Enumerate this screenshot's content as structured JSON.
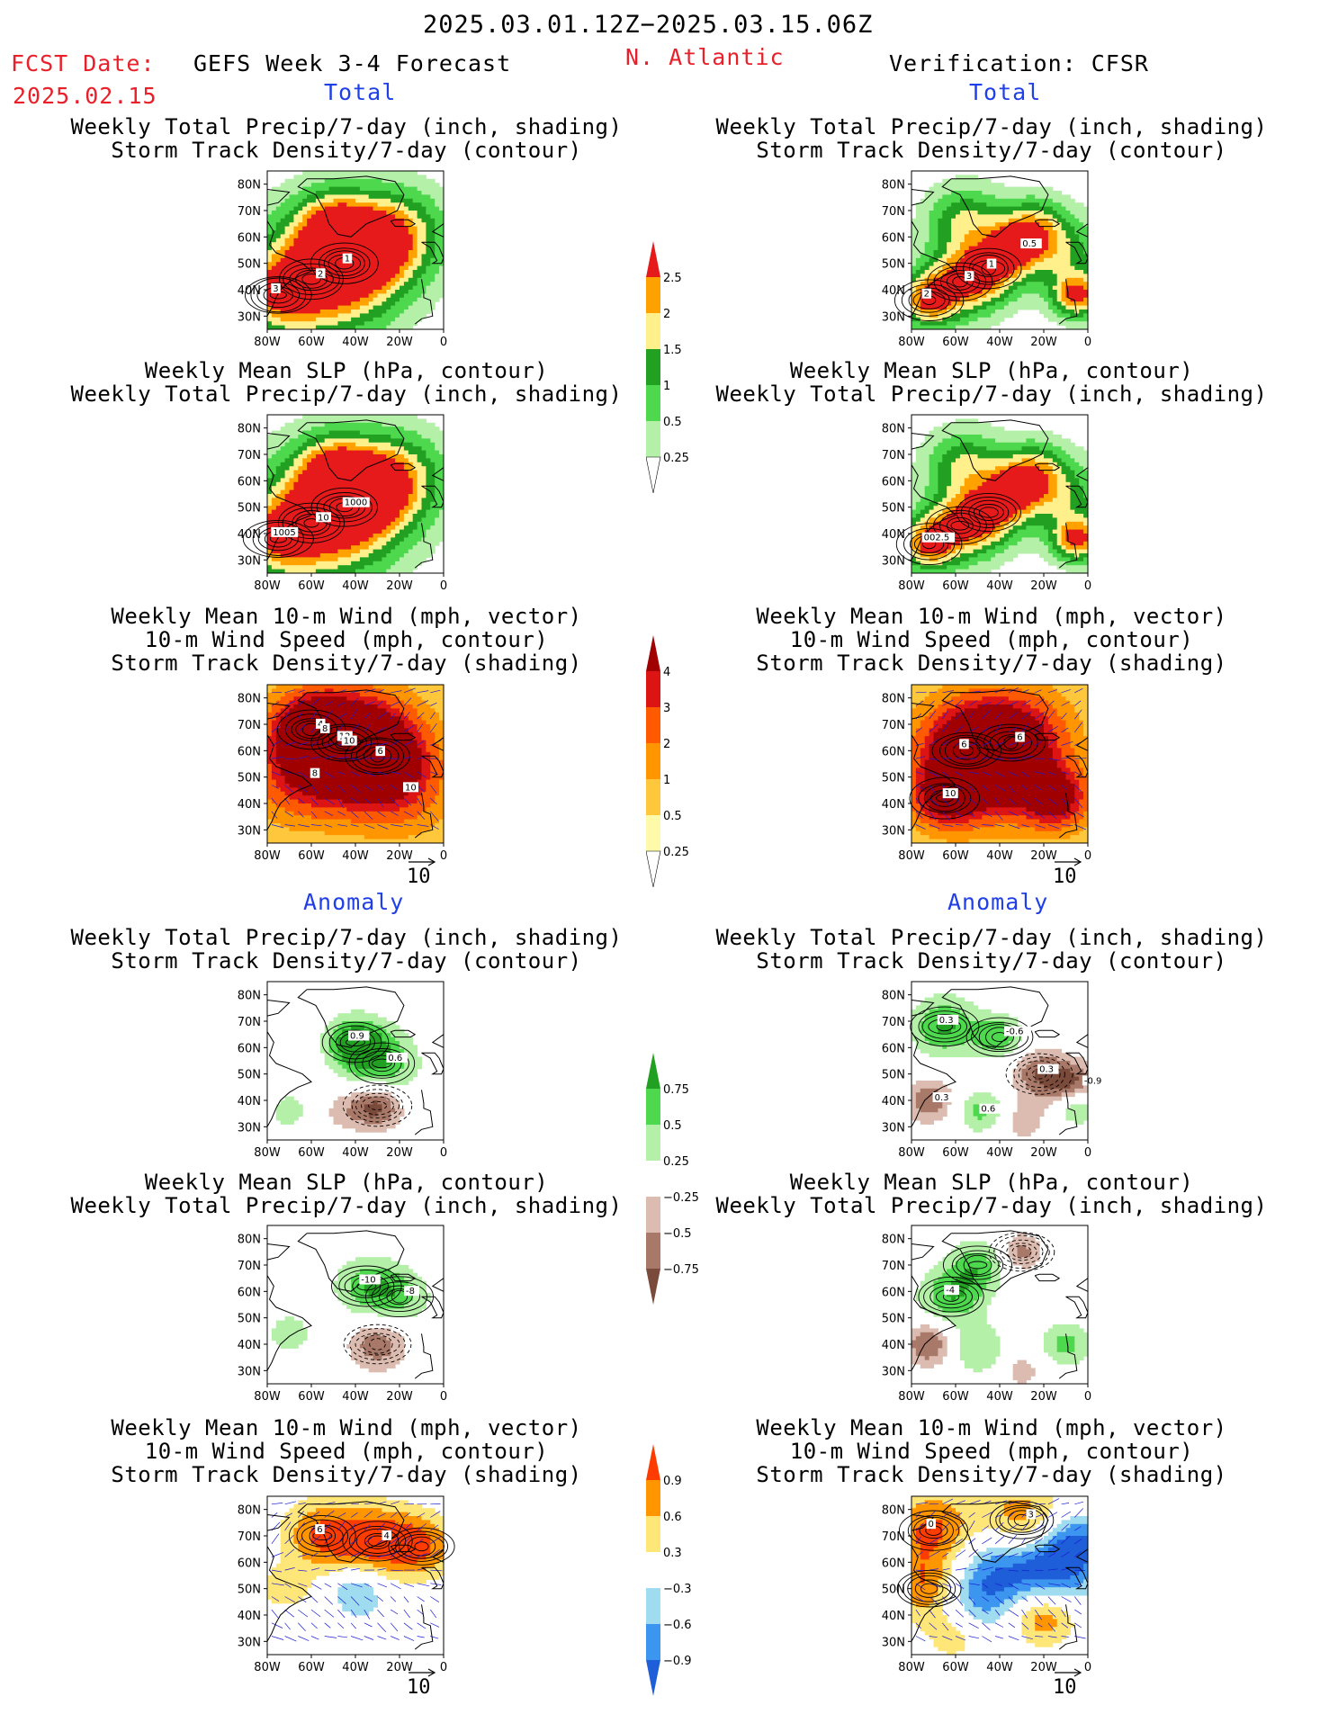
{
  "header": {
    "period": "2025.03.01.12Z−2025.03.15.06Z",
    "fcst_label": "FCST Date:",
    "fcst_date": "2025.02.15",
    "model": "GEFS Week 3-4 Forecast",
    "region": "N. Atlantic",
    "verification": "Verification: CFSR"
  },
  "sections": {
    "total": "Total",
    "anomaly": "Anomaly"
  },
  "titles": {
    "precip_track": [
      "Weekly Total Precip/7-day (inch, shading)",
      "Storm Track Density/7-day (contour)"
    ],
    "slp_precip": [
      "Weekly Mean SLP (hPa, contour)",
      "Weekly Total Precip/7-day (inch, shading)"
    ],
    "wind_track": [
      "Weekly Mean 10-m Wind (mph, vector)",
      "10-m Wind Speed (mph, contour)",
      "Storm Track Density/7-day (shading)"
    ]
  },
  "axes": {
    "lat_ticks": [
      "80N",
      "70N",
      "60N",
      "50N",
      "40N",
      "30N"
    ],
    "lon_ticks": [
      "80W",
      "60W",
      "40W",
      "20W",
      "0"
    ]
  },
  "vector_ref": "10",
  "colors": {
    "precip": [
      "#ffffff",
      "#b4f0a8",
      "#4ed84e",
      "#22a022",
      "#fff08c",
      "#ffa200",
      "#e61a1a"
    ],
    "track": [
      "#ffffff",
      "#fffaaa",
      "#ffc83c",
      "#ff9600",
      "#ff5a00",
      "#dc1414",
      "#a00000"
    ],
    "precip_anom": [
      "#7a4a3a",
      "#a87868",
      "#dcbcb0",
      "#ffffff",
      "#b4f0a8",
      "#4ed84e",
      "#22a022"
    ],
    "track_anom": [
      "#1e5ed8",
      "#3c96f0",
      "#a0dcf0",
      "#ffffff",
      "#ffe678",
      "#ff9600",
      "#ff3c00"
    ]
  },
  "chart_data": [
    {
      "type": "heatmap",
      "id": "colorbar_precip",
      "bounds": [
        "0.25",
        "0.5",
        "1",
        "1.5",
        "2",
        "2.5"
      ],
      "palette": "precip"
    },
    {
      "type": "heatmap",
      "id": "colorbar_track",
      "bounds": [
        "0.25",
        "0.5",
        "1",
        "2",
        "3",
        "4"
      ],
      "palette": "track"
    },
    {
      "type": "heatmap",
      "id": "colorbar_precip_anom",
      "bounds": [
        "−0.75",
        "−0.5",
        "−0.25",
        "0.25",
        "0.5",
        "0.75"
      ],
      "palette": "precip_anom"
    },
    {
      "type": "heatmap",
      "id": "colorbar_track_anom",
      "bounds": [
        "−0.9",
        "−0.6",
        "−0.3",
        "0.3",
        "0.6",
        "0.9"
      ],
      "palette": "track_anom"
    },
    {
      "type": "heatmap",
      "id": "maps",
      "xlim": [
        -80,
        0
      ],
      "ylim": [
        25,
        85
      ],
      "panel_labels": {
        "t_fc_1": [
          "3",
          "2",
          "1"
        ],
        "t_fc_2": [
          "1005",
          "10",
          "1000"
        ],
        "t_fc_3": [
          "12",
          "4",
          "6",
          "8",
          "10",
          "10",
          "8"
        ],
        "t_ob_1": [
          "2",
          "3",
          "1",
          "0.5"
        ],
        "t_ob_2": [
          "002.5"
        ],
        "t_ob_3": [
          "6",
          "6",
          "10"
        ],
        "a_fc_1": [
          "0.9",
          "0.6"
        ],
        "a_fc_2": [
          "-10",
          "-8"
        ],
        "a_fc_3": [
          "6",
          "4"
        ],
        "a_ob_1": [
          "0.3",
          "-0.6",
          "0.3",
          "-0.9",
          "0.3",
          "0.6"
        ],
        "a_ob_2": [
          "-4"
        ],
        "a_ob_3": [
          "0",
          "3"
        ]
      }
    }
  ]
}
